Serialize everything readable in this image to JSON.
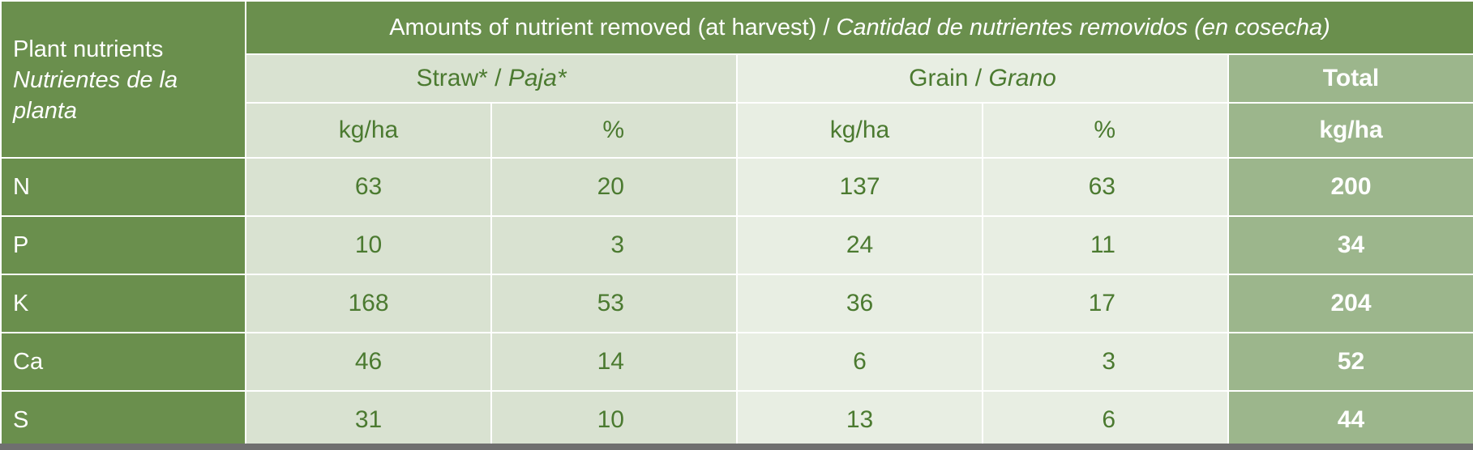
{
  "table": {
    "corner": {
      "line1": "Plant nutrients",
      "line2": "Nutrientes de la planta"
    },
    "title": {
      "en": "Amounts of nutrient removed (at harvest)",
      "sep": " / ",
      "es": "Cantidad de nutrientes removidos (en cosecha)"
    },
    "groups": {
      "straw": {
        "en": "Straw*",
        "sep": " / ",
        "es": "Paja*"
      },
      "grain": {
        "en": "Grain",
        "sep": " / ",
        "es": "Grano"
      },
      "total": "Total"
    },
    "units": {
      "straw_kg": "kg/ha",
      "straw_pct": "%",
      "grain_kg": "kg/ha",
      "grain_pct": "%",
      "total_kg": "kg/ha"
    },
    "rows": [
      {
        "nutrient": "N",
        "straw_kg": "63",
        "straw_pct": "20",
        "grain_kg": "137",
        "grain_pct": "63",
        "total": "200"
      },
      {
        "nutrient": "P",
        "straw_kg": "10",
        "straw_pct": "3",
        "grain_kg": "24",
        "grain_pct": "11",
        "total": "34"
      },
      {
        "nutrient": "K",
        "straw_kg": "168",
        "straw_pct": "53",
        "grain_kg": "36",
        "grain_pct": "17",
        "total": "204"
      },
      {
        "nutrient": "Ca",
        "straw_kg": "46",
        "straw_pct": "14",
        "grain_kg": "6",
        "grain_pct": "3",
        "total": "52"
      },
      {
        "nutrient": "S",
        "straw_kg": "31",
        "straw_pct": "10",
        "grain_kg": "13",
        "grain_pct": "6",
        "total": "44"
      }
    ]
  },
  "colors": {
    "header_green": "#6a8f4d",
    "straw_bg": "#d9e2d1",
    "grain_bg": "#e8eee3",
    "total_bg": "#9cb68c",
    "text_green": "#4b7a30"
  }
}
